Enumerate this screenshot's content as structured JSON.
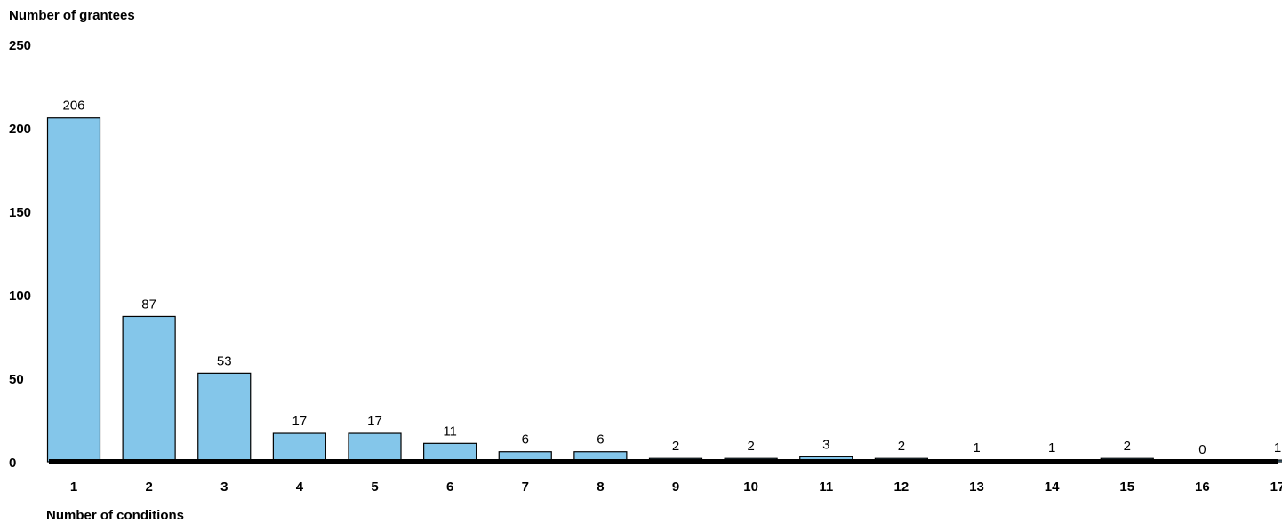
{
  "chart_data": {
    "type": "bar",
    "ylabel": "Number of grantees",
    "xlabel": "Number of conditions",
    "categories": [
      "1",
      "2",
      "3",
      "4",
      "5",
      "6",
      "7",
      "8",
      "9",
      "10",
      "11",
      "12",
      "13",
      "14",
      "15",
      "16",
      "17"
    ],
    "values": [
      206,
      87,
      53,
      17,
      17,
      11,
      6,
      6,
      2,
      2,
      3,
      2,
      1,
      1,
      2,
      0,
      1
    ],
    "data_labels": [
      "206",
      "87",
      "53",
      "17",
      "17",
      "11",
      "6",
      "6",
      "2",
      "2",
      "3",
      "2",
      "1",
      "1",
      "2",
      "0",
      "1"
    ],
    "ylim": [
      0,
      250
    ],
    "yticks": [
      "0",
      "50",
      "100",
      "150",
      "200",
      "250"
    ],
    "grid": false,
    "bar_color": "#84c6ea",
    "bar_outline_color": "#000000"
  }
}
